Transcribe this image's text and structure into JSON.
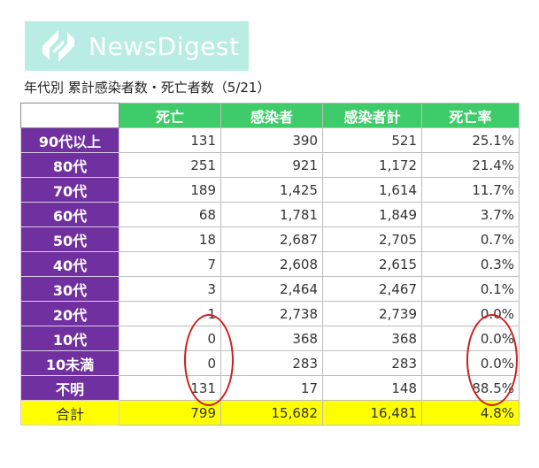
{
  "logo": {
    "text": "NewsDigest"
  },
  "caption": "年代別 累計感染者数・死亡者数（5/21）",
  "table": {
    "headers": [
      "死亡",
      "感染者",
      "感染者計",
      "死亡率"
    ],
    "rows": [
      {
        "label": "90代以上",
        "cells": [
          "131",
          "390",
          "521",
          "25.1%"
        ]
      },
      {
        "label": "80代",
        "cells": [
          "251",
          "921",
          "1,172",
          "21.4%"
        ]
      },
      {
        "label": "70代",
        "cells": [
          "189",
          "1,425",
          "1,614",
          "11.7%"
        ]
      },
      {
        "label": "60代",
        "cells": [
          "68",
          "1,781",
          "1,849",
          "3.7%"
        ]
      },
      {
        "label": "50代",
        "cells": [
          "18",
          "2,687",
          "2,705",
          "0.7%"
        ]
      },
      {
        "label": "40代",
        "cells": [
          "7",
          "2,608",
          "2,615",
          "0.3%"
        ]
      },
      {
        "label": "30代",
        "cells": [
          "3",
          "2,464",
          "2,467",
          "0.1%"
        ]
      },
      {
        "label": "20代",
        "cells": [
          "1",
          "2,738",
          "2,739",
          "0.0%"
        ]
      },
      {
        "label": "10代",
        "cells": [
          "0",
          "368",
          "368",
          "0.0%"
        ]
      },
      {
        "label": "10未満",
        "cells": [
          "0",
          "283",
          "283",
          "0.0%"
        ]
      },
      {
        "label": "不明",
        "cells": [
          "131",
          "17",
          "148",
          "88.5%"
        ]
      }
    ],
    "total": {
      "label": "合計",
      "cells": [
        "799",
        "15,682",
        "16,481",
        "4.8%"
      ]
    }
  },
  "colors": {
    "header_bg": "#3ecc6a",
    "row_label_bg": "#7030a0",
    "total_bg": "#ffff00",
    "logo_bg": "#b9ede4",
    "highlight_circle": "#cc1f1f"
  }
}
